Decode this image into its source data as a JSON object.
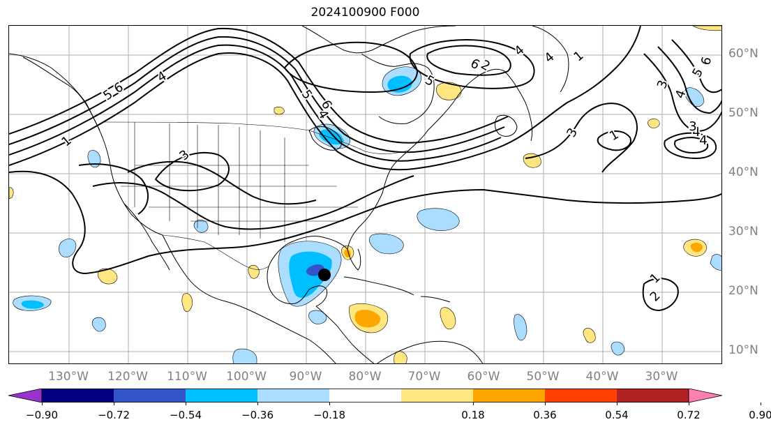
{
  "title": "2024100900 F000",
  "lat_labels": [
    "60°N",
    "50°N",
    "40°N",
    "30°N",
    "20°N",
    "10°N"
  ],
  "lon_labels": [
    "130°W",
    "120°W",
    "110°W",
    "100°W",
    "90°W",
    "80°W",
    "70°W",
    "60°W",
    "50°W",
    "40°W",
    "30°W"
  ],
  "colorbar": {
    "ticks": [
      "−0.90",
      "−0.72",
      "−0.54",
      "−0.36",
      "−0.18",
      "0.18",
      "0.36",
      "0.54",
      "0.72",
      "0.90"
    ],
    "colors": [
      "#9933cc",
      "#000080",
      "#3355cc",
      "#00bfff",
      "#aaddff",
      "#ffffff",
      "#ffe680",
      "#ffa500",
      "#ff4000",
      "#b22222",
      "#ff80b0"
    ]
  },
  "contour_labels": [
    "1",
    "5",
    "6",
    "4",
    "3",
    "5",
    "6",
    "4",
    "5",
    "6",
    "2",
    "1",
    "4",
    "1",
    "3",
    "4",
    "6",
    "5",
    "3",
    "4",
    "1",
    "2",
    "4",
    "3",
    "4"
  ],
  "storm_marker": {
    "lat": 23,
    "lon": "86°W"
  },
  "colors": {
    "contour": "#000000",
    "grid": "#999999",
    "land": "#000000",
    "marker": "#000000"
  }
}
